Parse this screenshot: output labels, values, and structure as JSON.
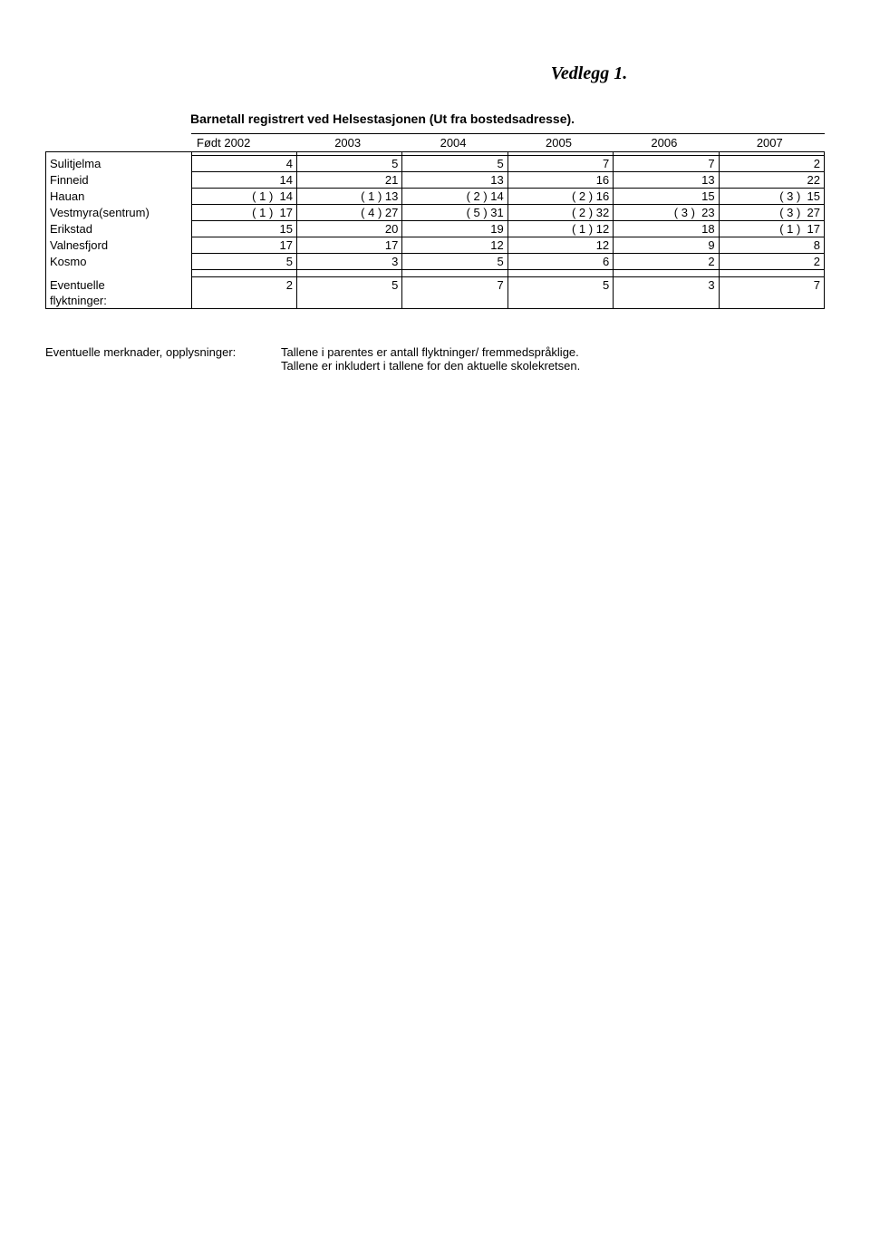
{
  "title": "Vedlegg 1.",
  "subtitle": "Barnetall registrert ved Helsestasjonen (Ut fra bostedsadresse).",
  "columns": [
    "Født 2002",
    "2003",
    "2004",
    "2005",
    "2006",
    "2007"
  ],
  "rows": [
    {
      "label": "Sulitjelma",
      "cells": [
        "4",
        "5",
        "5",
        "7",
        "7",
        "2"
      ]
    },
    {
      "label": "Finneid",
      "cells": [
        "14",
        "21",
        "13",
        "16",
        "13",
        "22"
      ]
    },
    {
      "label": "Hauan",
      "cells": [
        "( 1 )  14",
        "( 1 ) 13",
        "( 2 ) 14",
        "( 2 ) 16",
        "15",
        "( 3 )  15"
      ]
    },
    {
      "label": "Vestmyra(sentrum)",
      "cells": [
        "( 1 )  17",
        "( 4 ) 27",
        "( 5 ) 31",
        "( 2 ) 32",
        "( 3 )  23",
        "( 3 )  27"
      ]
    },
    {
      "label": "Erikstad",
      "cells": [
        "15",
        "20",
        "19",
        "( 1 ) 12",
        "18",
        "( 1 )  17"
      ]
    },
    {
      "label": "Valnesfjord",
      "cells": [
        "17",
        "17",
        "12",
        "12",
        "9",
        "8"
      ]
    },
    {
      "label": "Kosmo",
      "cells": [
        "5",
        "3",
        "5",
        "6",
        "2",
        "2"
      ]
    }
  ],
  "footer_row": {
    "label": "Eventuelle\nflyktninger:",
    "cells": [
      "2",
      "5",
      "7",
      "5",
      "3",
      "7"
    ]
  },
  "notes_label": "Eventuelle merknader, opplysninger:",
  "notes_text_1": "Tallene i parentes er antall flyktninger/ fremmedspråklige.",
  "notes_text_2": "Tallene er inkludert i tallene for den aktuelle skolekretsen.",
  "colors": {
    "border": "#000000",
    "bg": "#ffffff",
    "text": "#000000"
  }
}
